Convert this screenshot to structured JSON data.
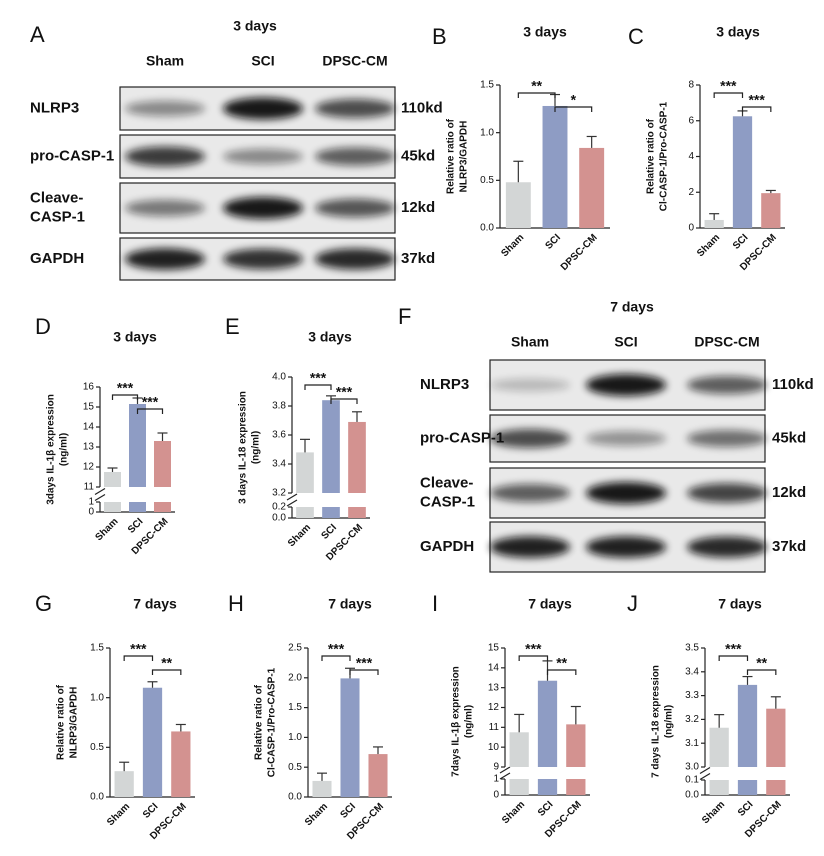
{
  "blots": [
    {
      "label": "A",
      "title": "3 days",
      "lanes": [
        "Sham",
        "SCI",
        "DPSC-CM"
      ],
      "rows": [
        {
          "name": [
            "NLRP3"
          ],
          "size": "110kd"
        },
        {
          "name": [
            "pro-CASP-1"
          ],
          "size": "45kd"
        },
        {
          "name": [
            "Cleave-",
            "CASP-1"
          ],
          "size": "12kd"
        },
        {
          "name": [
            "GAPDH"
          ],
          "size": "37kd"
        }
      ]
    },
    {
      "label": "F",
      "title": "7 days",
      "lanes": [
        "Sham",
        "SCI",
        "DPSC-CM"
      ],
      "rows": [
        {
          "name": [
            "NLRP3"
          ],
          "size": "110kd"
        },
        {
          "name": [
            "pro-CASP-1"
          ],
          "size": "45kd"
        },
        {
          "name": [
            "Cleave-",
            "CASP-1"
          ],
          "size": "12kd"
        },
        {
          "name": [
            "GAPDH"
          ],
          "size": "37kd"
        }
      ]
    }
  ],
  "chart_data": [
    {
      "type": "bar",
      "label": "B",
      "title": "3 days",
      "ylabel": [
        "Relative ratio of",
        "NLRP3/GAPDH"
      ],
      "categories": [
        "Sham",
        "SCI",
        "DPSC-CM"
      ],
      "colors": [
        "#d3d6d6",
        "#8e9cc4",
        "#d39290"
      ],
      "values": [
        0.48,
        1.28,
        0.84
      ],
      "errors": [
        0.22,
        0.12,
        0.12
      ],
      "ylim": [
        0,
        1.5
      ],
      "yticks": [
        {
          "value": 0,
          "label": "0.0"
        },
        0.5,
        {
          "value": 1,
          "label": "1.0"
        },
        1.5
      ],
      "significance": [
        "**",
        "*"
      ]
    },
    {
      "type": "bar",
      "label": "C",
      "title": "3 days",
      "ylabel": [
        "Relative ratio of",
        "Cl-CASP-1/Pro-CASP-1"
      ],
      "categories": [
        "Sham",
        "SCI",
        "DPSC-CM"
      ],
      "colors": [
        "#d3d6d6",
        "#8e9cc4",
        "#d39290"
      ],
      "values": [
        0.45,
        6.25,
        1.95
      ],
      "errors": [
        0.35,
        0.3,
        0.15
      ],
      "ylim": [
        0,
        8
      ],
      "yticks": [
        0,
        2,
        4,
        6,
        8
      ],
      "significance": [
        "***",
        "***"
      ]
    },
    {
      "type": "bar",
      "label": "D",
      "title": "3 days",
      "ylabel": [
        "3days IL-1β expression",
        "(ng/ml)"
      ],
      "categories": [
        "Sham",
        "SCI",
        "DPSC-CM"
      ],
      "colors": [
        "#d3d6d6",
        "#8e9cc4",
        "#d39290"
      ],
      "values": [
        11.75,
        15.15,
        13.3
      ],
      "errors": [
        0.2,
        0.3,
        0.4
      ],
      "ylim": [
        11,
        16
      ],
      "yticks": [
        11,
        12,
        13,
        14,
        15,
        16
      ],
      "lower_ylim": [
        0,
        1
      ],
      "lower_yticks": [
        0,
        1
      ],
      "significance": [
        "***",
        "***"
      ]
    },
    {
      "type": "bar",
      "label": "E",
      "title": "3 days",
      "ylabel": [
        "3 days IL-18 expression",
        "(ng/ml)"
      ],
      "categories": [
        "Sham",
        "SCI",
        "DPSC-CM"
      ],
      "colors": [
        "#d3d6d6",
        "#8e9cc4",
        "#d39290"
      ],
      "values": [
        3.48,
        3.84,
        3.69
      ],
      "errors": [
        0.09,
        0.03,
        0.07
      ],
      "ylim": [
        3.2,
        4
      ],
      "yticks": [
        3.2,
        3.4,
        3.6,
        3.8,
        {
          "value": 4,
          "label": "4.0"
        }
      ],
      "lower_ylim": [
        0,
        0.2
      ],
      "lower_yticks": [
        {
          "value": 0,
          "label": "0.0"
        },
        0.2
      ],
      "significance": [
        "***",
        "***"
      ]
    },
    {
      "type": "bar",
      "label": "G",
      "title": "7 days",
      "ylabel": [
        "Relative ratio of",
        "NLRP3/GAPDH"
      ],
      "categories": [
        "Sham",
        "SCI",
        "DPSC-CM"
      ],
      "colors": [
        "#d3d6d6",
        "#8e9cc4",
        "#d39290"
      ],
      "values": [
        0.26,
        1.1,
        0.66
      ],
      "errors": [
        0.09,
        0.06,
        0.07
      ],
      "ylim": [
        0,
        1.5
      ],
      "yticks": [
        {
          "value": 0,
          "label": "0.0"
        },
        0.5,
        {
          "value": 1,
          "label": "1.0"
        },
        1.5
      ],
      "significance": [
        "***",
        "**"
      ]
    },
    {
      "type": "bar",
      "label": "H",
      "title": "7 days",
      "ylabel": [
        "Relative ratio of",
        "Cl-CASP-1/Pro-CASP-1"
      ],
      "categories": [
        "Sham",
        "SCI",
        "DPSC-CM"
      ],
      "colors": [
        "#d3d6d6",
        "#8e9cc4",
        "#d39290"
      ],
      "values": [
        0.27,
        1.99,
        0.72
      ],
      "errors": [
        0.13,
        0.17,
        0.12
      ],
      "ylim": [
        0,
        2.5
      ],
      "yticks": [
        {
          "value": 0,
          "label": "0.0"
        },
        0.5,
        {
          "value": 1,
          "label": "1.0"
        },
        1.5,
        {
          "value": 2,
          "label": "2.0"
        },
        2.5
      ],
      "significance": [
        "***",
        "***"
      ]
    },
    {
      "type": "bar",
      "label": "I",
      "title": "7 days",
      "ylabel": [
        "7days IL-1β expression",
        "(ng/ml)"
      ],
      "categories": [
        "Sham",
        "SCI",
        "DPSC-CM"
      ],
      "colors": [
        "#d3d6d6",
        "#8e9cc4",
        "#d39290"
      ],
      "values": [
        10.75,
        13.35,
        11.15
      ],
      "errors": [
        0.9,
        1.0,
        0.9
      ],
      "ylim": [
        9,
        15
      ],
      "yticks": [
        9,
        10,
        11,
        12,
        13,
        14,
        15
      ],
      "lower_ylim": [
        0,
        1
      ],
      "lower_yticks": [
        0,
        1
      ],
      "significance": [
        "***",
        "**"
      ]
    },
    {
      "type": "bar",
      "label": "J",
      "title": "7 days",
      "ylabel": [
        "7 days IL-18 expression",
        "(ng/ml)"
      ],
      "categories": [
        "Sham",
        "SCI",
        "DPSC-CM"
      ],
      "colors": [
        "#d3d6d6",
        "#8e9cc4",
        "#d39290"
      ],
      "values": [
        3.165,
        3.345,
        3.245
      ],
      "errors": [
        0.055,
        0.035,
        0.05
      ],
      "ylim": [
        3,
        3.5
      ],
      "yticks": [
        {
          "value": 3,
          "label": "3.0"
        },
        3.1,
        3.2,
        3.3,
        3.4,
        3.5
      ],
      "lower_ylim": [
        0,
        0.1
      ],
      "lower_yticks": [
        {
          "value": 0,
          "label": "0.0"
        },
        0.1
      ],
      "significance": [
        "***",
        "**"
      ]
    }
  ]
}
